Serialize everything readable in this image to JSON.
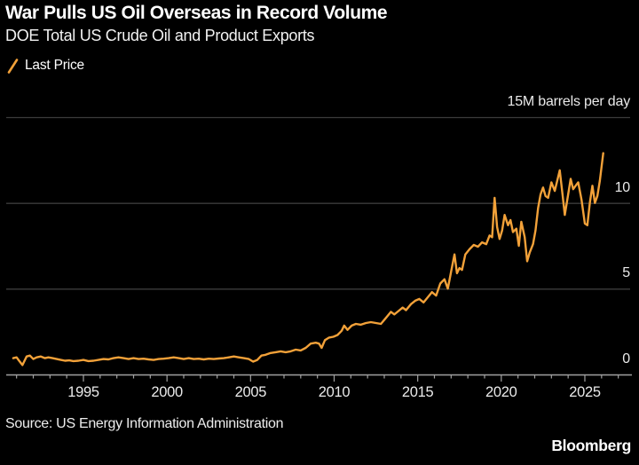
{
  "header": {
    "title": "War Pulls US Oil Overseas in Record Volume",
    "subtitle": "DOE Total US Crude Oil and Product Exports"
  },
  "legend": {
    "label": "Last Price"
  },
  "footer": {
    "source": "Source: US Energy Information Administration",
    "brand": "Bloomberg"
  },
  "colors": {
    "background": "#000000",
    "line": "#F2A139",
    "grid": "#3B3B3B",
    "axis": "#A0A0A0",
    "text": "#EAEAEA",
    "title": "#FFFFFF"
  },
  "chart_data": {
    "type": "line",
    "title": "War Pulls US Oil Overseas in Record Volume",
    "subtitle": "DOE Total US Crude Oil and Product Exports",
    "ylabel": "",
    "xlabel": "",
    "unit_label": "15M barrels per day",
    "legend_position": "top-left",
    "grid": "horizontal-only",
    "xlim": [
      1990.5,
      2027.8
    ],
    "ylim": [
      0,
      15
    ],
    "y_ticks": [
      {
        "value": 0,
        "label": "0"
      },
      {
        "value": 5,
        "label": "5"
      },
      {
        "value": 10,
        "label": "10"
      },
      {
        "value": 15,
        "label": "15M barrels per day"
      }
    ],
    "x_tick_labels": [
      1995,
      2000,
      2005,
      2010,
      2015,
      2020,
      2025
    ],
    "x_minor_ticks": {
      "start": 1991,
      "end": 2027,
      "step": 1
    },
    "series": [
      {
        "name": "Last Price",
        "points": [
          [
            1990.8,
            0.95
          ],
          [
            1991.0,
            1.0
          ],
          [
            1991.15,
            0.8
          ],
          [
            1991.35,
            0.55
          ],
          [
            1991.6,
            1.05
          ],
          [
            1991.8,
            1.1
          ],
          [
            1992.0,
            0.9
          ],
          [
            1992.2,
            1.0
          ],
          [
            1992.45,
            1.05
          ],
          [
            1992.7,
            0.95
          ],
          [
            1992.9,
            1.0
          ],
          [
            1993.15,
            0.95
          ],
          [
            1993.4,
            0.9
          ],
          [
            1993.65,
            0.85
          ],
          [
            1993.9,
            0.8
          ],
          [
            1994.15,
            0.82
          ],
          [
            1994.4,
            0.78
          ],
          [
            1994.7,
            0.8
          ],
          [
            1995.0,
            0.85
          ],
          [
            1995.3,
            0.78
          ],
          [
            1995.6,
            0.8
          ],
          [
            1995.9,
            0.85
          ],
          [
            1996.2,
            0.9
          ],
          [
            1996.5,
            0.88
          ],
          [
            1996.8,
            0.95
          ],
          [
            1997.1,
            1.0
          ],
          [
            1997.4,
            0.95
          ],
          [
            1997.7,
            0.9
          ],
          [
            1998.0,
            0.95
          ],
          [
            1998.3,
            0.9
          ],
          [
            1998.6,
            0.92
          ],
          [
            1998.9,
            0.88
          ],
          [
            1999.2,
            0.85
          ],
          [
            1999.5,
            0.9
          ],
          [
            1999.8,
            0.92
          ],
          [
            2000.1,
            0.95
          ],
          [
            2000.4,
            1.0
          ],
          [
            2000.7,
            0.95
          ],
          [
            2001.0,
            0.9
          ],
          [
            2001.3,
            0.95
          ],
          [
            2001.6,
            0.9
          ],
          [
            2001.9,
            0.92
          ],
          [
            2002.2,
            0.88
          ],
          [
            2002.5,
            0.92
          ],
          [
            2002.8,
            0.9
          ],
          [
            2003.1,
            0.93
          ],
          [
            2003.4,
            0.95
          ],
          [
            2003.7,
            1.0
          ],
          [
            2004.0,
            1.05
          ],
          [
            2004.3,
            1.0
          ],
          [
            2004.6,
            0.95
          ],
          [
            2004.9,
            0.9
          ],
          [
            2005.15,
            0.75
          ],
          [
            2005.4,
            0.85
          ],
          [
            2005.65,
            1.1
          ],
          [
            2005.9,
            1.15
          ],
          [
            2006.2,
            1.25
          ],
          [
            2006.5,
            1.3
          ],
          [
            2006.8,
            1.35
          ],
          [
            2007.1,
            1.3
          ],
          [
            2007.4,
            1.35
          ],
          [
            2007.7,
            1.45
          ],
          [
            2008.0,
            1.4
          ],
          [
            2008.3,
            1.55
          ],
          [
            2008.6,
            1.8
          ],
          [
            2008.9,
            1.85
          ],
          [
            2009.1,
            1.8
          ],
          [
            2009.25,
            1.55
          ],
          [
            2009.45,
            2.0
          ],
          [
            2009.7,
            2.15
          ],
          [
            2009.95,
            2.2
          ],
          [
            2010.2,
            2.3
          ],
          [
            2010.45,
            2.55
          ],
          [
            2010.6,
            2.85
          ],
          [
            2010.8,
            2.6
          ],
          [
            2011.05,
            2.85
          ],
          [
            2011.3,
            2.95
          ],
          [
            2011.6,
            2.9
          ],
          [
            2011.9,
            3.0
          ],
          [
            2012.2,
            3.05
          ],
          [
            2012.5,
            3.0
          ],
          [
            2012.8,
            2.95
          ],
          [
            2013.1,
            3.3
          ],
          [
            2013.4,
            3.65
          ],
          [
            2013.6,
            3.5
          ],
          [
            2013.85,
            3.7
          ],
          [
            2014.1,
            3.9
          ],
          [
            2014.3,
            3.75
          ],
          [
            2014.6,
            4.1
          ],
          [
            2014.85,
            4.3
          ],
          [
            2015.1,
            4.4
          ],
          [
            2015.35,
            4.2
          ],
          [
            2015.6,
            4.5
          ],
          [
            2015.85,
            4.8
          ],
          [
            2016.1,
            4.6
          ],
          [
            2016.35,
            5.3
          ],
          [
            2016.6,
            5.55
          ],
          [
            2016.8,
            5.0
          ],
          [
            2017.0,
            6.0
          ],
          [
            2017.2,
            7.0
          ],
          [
            2017.35,
            5.9
          ],
          [
            2017.5,
            6.2
          ],
          [
            2017.65,
            6.1
          ],
          [
            2017.85,
            7.0
          ],
          [
            2018.1,
            7.3
          ],
          [
            2018.35,
            7.55
          ],
          [
            2018.6,
            7.45
          ],
          [
            2018.85,
            7.7
          ],
          [
            2019.1,
            7.6
          ],
          [
            2019.3,
            8.1
          ],
          [
            2019.45,
            8.0
          ],
          [
            2019.6,
            10.3
          ],
          [
            2019.75,
            8.6
          ],
          [
            2019.9,
            7.9
          ],
          [
            2020.05,
            8.4
          ],
          [
            2020.2,
            9.3
          ],
          [
            2020.4,
            8.7
          ],
          [
            2020.55,
            9.0
          ],
          [
            2020.7,
            8.3
          ],
          [
            2020.9,
            8.5
          ],
          [
            2021.05,
            7.5
          ],
          [
            2021.2,
            8.9
          ],
          [
            2021.4,
            8.0
          ],
          [
            2021.55,
            6.6
          ],
          [
            2021.7,
            7.1
          ],
          [
            2021.9,
            7.6
          ],
          [
            2022.05,
            8.4
          ],
          [
            2022.2,
            9.7
          ],
          [
            2022.35,
            10.5
          ],
          [
            2022.5,
            10.9
          ],
          [
            2022.65,
            10.4
          ],
          [
            2022.8,
            10.3
          ],
          [
            2023.0,
            11.2
          ],
          [
            2023.2,
            10.7
          ],
          [
            2023.35,
            11.3
          ],
          [
            2023.5,
            11.9
          ],
          [
            2023.65,
            10.6
          ],
          [
            2023.8,
            9.3
          ],
          [
            2024.0,
            10.5
          ],
          [
            2024.15,
            11.4
          ],
          [
            2024.3,
            10.8
          ],
          [
            2024.45,
            11.0
          ],
          [
            2024.6,
            11.2
          ],
          [
            2024.8,
            10.2
          ],
          [
            2025.0,
            8.8
          ],
          [
            2025.15,
            8.7
          ],
          [
            2025.3,
            10.0
          ],
          [
            2025.45,
            11.0
          ],
          [
            2025.6,
            10.0
          ],
          [
            2025.75,
            10.4
          ],
          [
            2025.9,
            11.3
          ],
          [
            2026.1,
            12.9
          ]
        ]
      }
    ]
  }
}
